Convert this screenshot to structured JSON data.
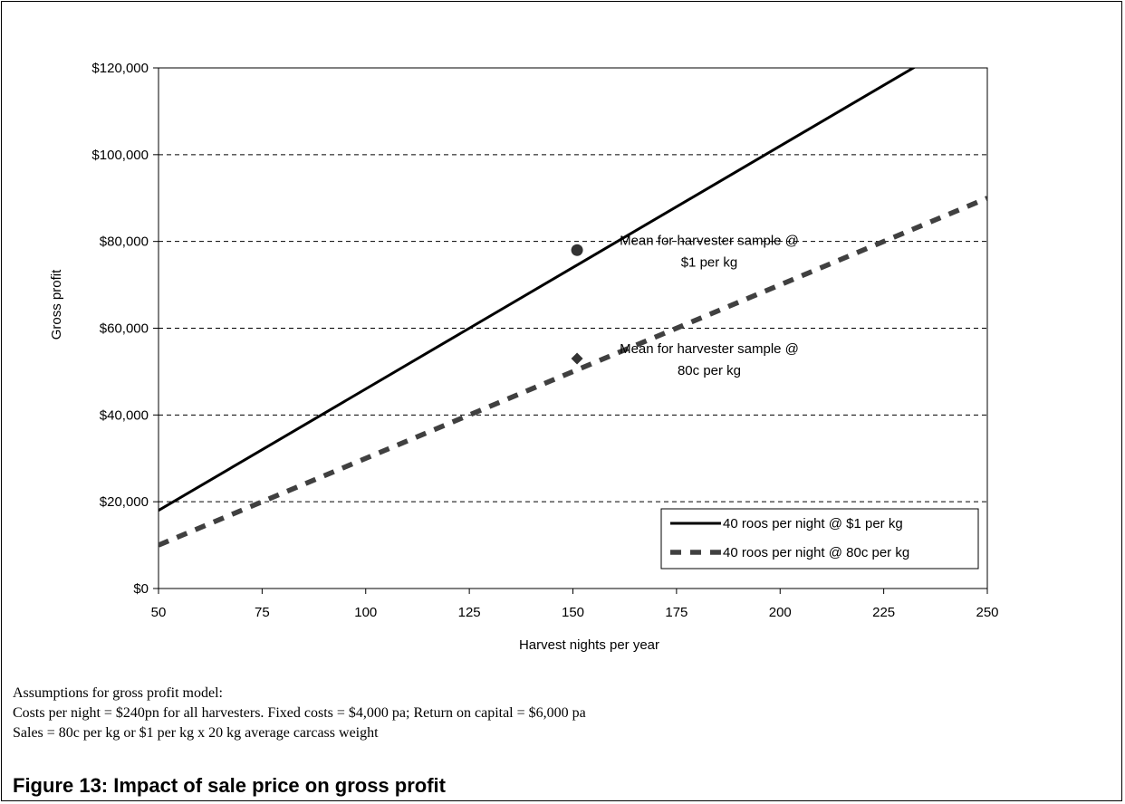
{
  "chart_data": {
    "type": "line",
    "xlabel": "Harvest nights per year",
    "ylabel": "Gross profit",
    "xlim": [
      50,
      250
    ],
    "ylim": [
      0,
      120000
    ],
    "x_ticks": [
      50,
      75,
      100,
      125,
      150,
      175,
      200,
      225,
      250
    ],
    "x_tick_labels": [
      "50",
      "75",
      "100",
      "125",
      "150",
      "175",
      "200",
      "225",
      "250"
    ],
    "y_ticks": [
      0,
      20000,
      40000,
      60000,
      80000,
      100000,
      120000
    ],
    "y_tick_labels": [
      "$0",
      "$20,000",
      "$40,000",
      "$60,000",
      "$80,000",
      "$100,000",
      "$120,000"
    ],
    "grid": "horizontal dashed",
    "legend_position": "bottom-right",
    "series": [
      {
        "name": "40 roos per night @ $1 per kg",
        "style": "solid",
        "color": "#000000",
        "x": [
          50,
          250
        ],
        "y": [
          18000,
          130000
        ]
      },
      {
        "name": "40 roos per night @ 80c per kg",
        "style": "dashed",
        "color": "#404040",
        "x": [
          50,
          250
        ],
        "y": [
          10000,
          90000
        ]
      }
    ],
    "points": [
      {
        "marker": "circle",
        "x": 151,
        "y": 78000,
        "label_lines": [
          "Mean for harvester sample @",
          "$1 per kg"
        ]
      },
      {
        "marker": "diamond",
        "x": 151,
        "y": 53000,
        "label_lines": [
          "Mean for harvester sample @",
          "80c per kg"
        ]
      }
    ]
  },
  "notes": {
    "heading": "Assumptions for gross profit model:",
    "line1": "Costs per night = $240pn for all harvesters. Fixed costs = $4,000 pa; Return on capital = $6,000 pa",
    "line2": "Sales = 80c per kg or $1 per kg x 20 kg average carcass weight"
  },
  "caption": "Figure 13: Impact of sale price on gross profit"
}
